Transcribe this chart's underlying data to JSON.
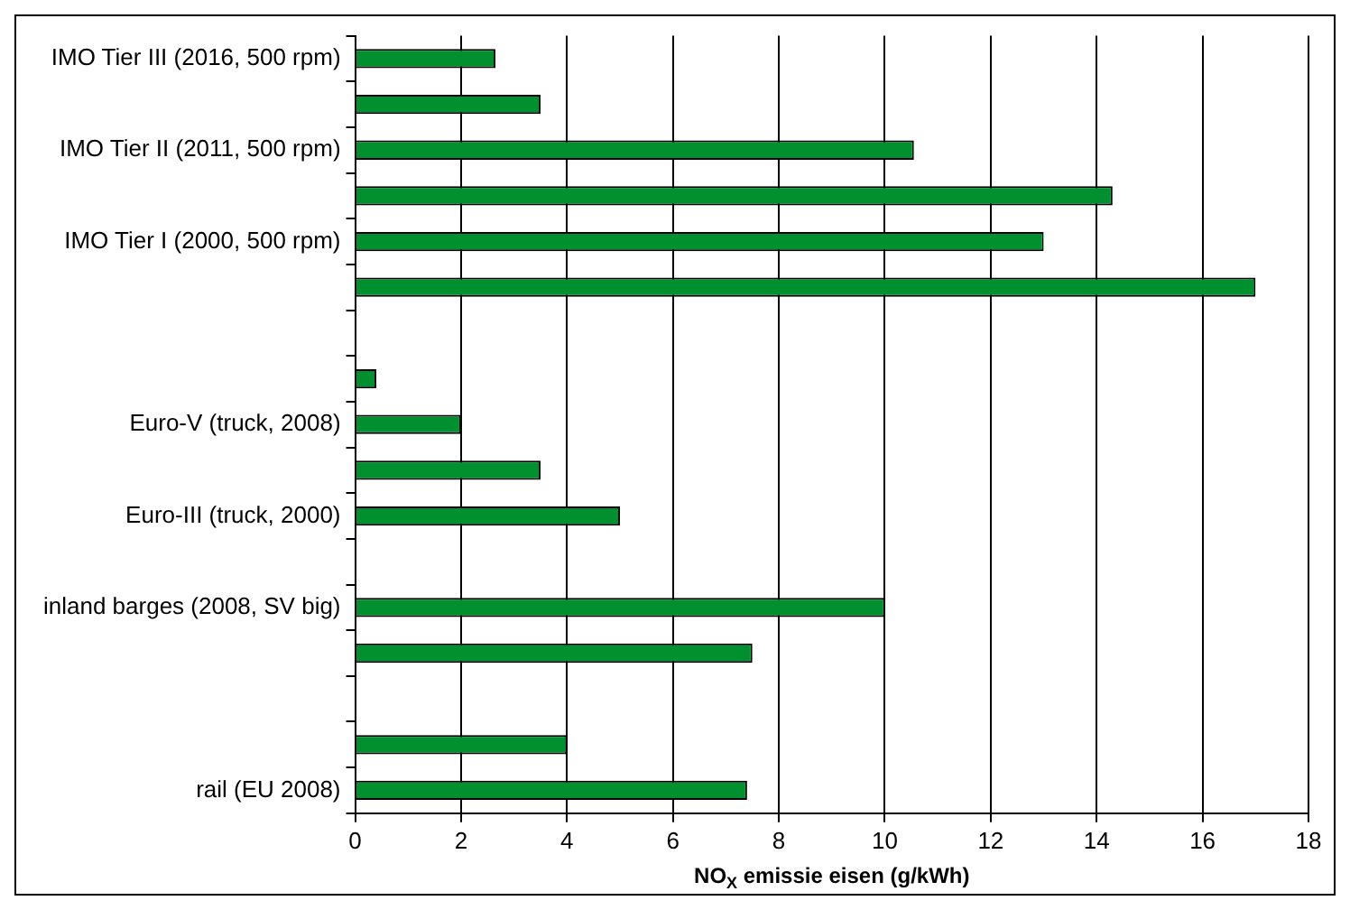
{
  "chart_data": {
    "type": "bar",
    "orientation": "horizontal",
    "xlabel": "NO$_{X}$ emissie eisen (g/kWh)",
    "categories": [
      "IMO Tier III (2016, 500 rpm)",
      null,
      "IMO Tier II (2011, 500 rpm)",
      null,
      "IMO Tier I (2000, 500 rpm)",
      null,
      null,
      null,
      "Euro-V (truck, 2008)",
      null,
      "Euro-III (truck, 2000)",
      null,
      "inland barges (2008, SV big)",
      null,
      null,
      null,
      "rail (EU 2008)"
    ],
    "values": [
      2.65,
      3.5,
      10.55,
      14.3,
      13,
      17,
      null,
      0.4,
      2,
      3.5,
      5,
      null,
      10,
      7.5,
      null,
      4,
      7.4
    ],
    "color": "#00902f",
    "xlim": [
      0,
      18
    ],
    "xticks": [
      0,
      2,
      4,
      6,
      8,
      10,
      12,
      14,
      16,
      18
    ],
    "grid": "x"
  }
}
